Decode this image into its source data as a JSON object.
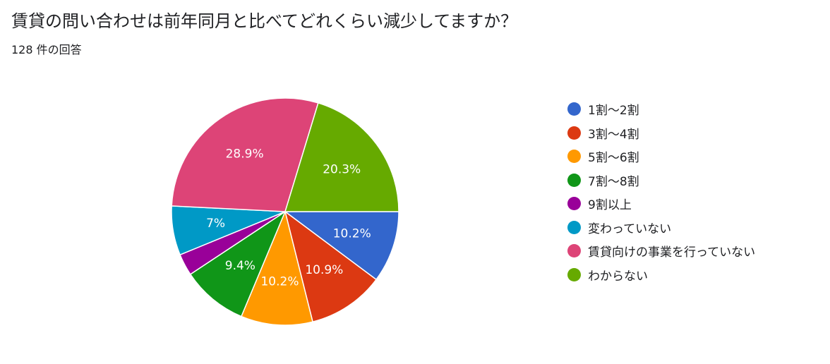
{
  "title": "賃貸の問い合わせは前年同月と比べてどれくらい減少してますか？",
  "response_count": "128 件の回答",
  "chart_data": {
    "type": "pie",
    "categories": [
      "1割～2割",
      "3割～4割",
      "5割～6割",
      "7割～8割",
      "9割以上",
      "変わっていない",
      "賃貸向けの事業を行っていない",
      "わからない"
    ],
    "values": [
      10.2,
      10.9,
      10.2,
      9.4,
      3.1,
      7.0,
      28.9,
      20.3
    ],
    "data_labels": [
      "10.2%",
      "10.9%",
      "10.2%",
      "9.4%",
      "",
      "7%",
      "28.9%",
      "20.3%"
    ],
    "colors": [
      "#3366cc",
      "#dc3912",
      "#ff9900",
      "#109618",
      "#990099",
      "#0099c6",
      "#dd4477",
      "#66aa00"
    ],
    "legend_position": "right"
  }
}
